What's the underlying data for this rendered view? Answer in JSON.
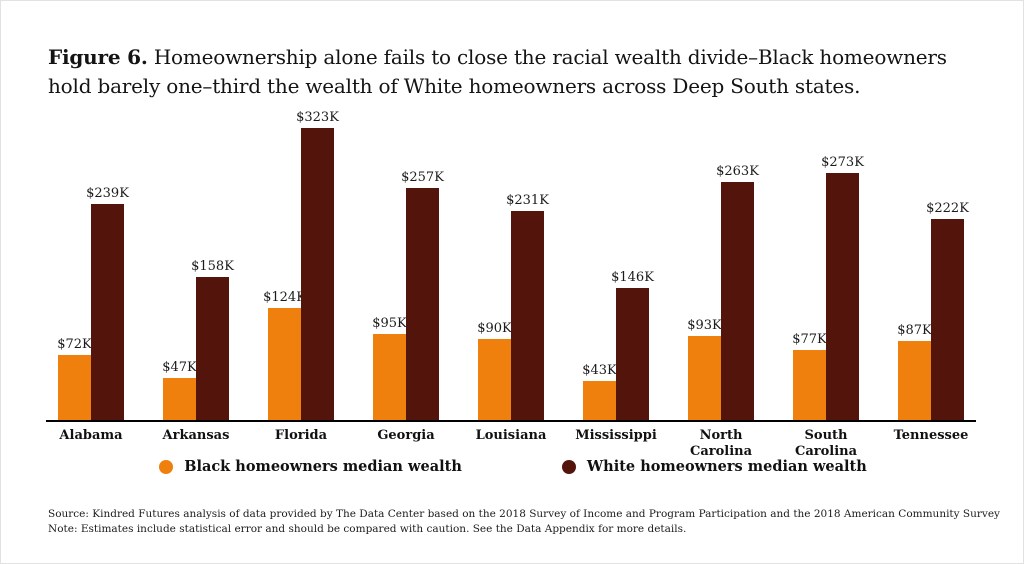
{
  "title": {
    "prefix": "Figure 6.",
    "text": "Homeownership alone fails to close the racial wealth divide–Black homeowners hold barely one–third the wealth of White homeowners across Deep South states."
  },
  "chart_data": {
    "type": "bar",
    "categories": [
      "Alabama",
      "Arkansas",
      "Florida",
      "Georgia",
      "Louisiana",
      "Mississippi",
      "North Carolina",
      "South Carolina",
      "Tennessee"
    ],
    "series": [
      {
        "name": "Black homeowners median wealth",
        "color": "#F0800E",
        "values": [
          72,
          47,
          124,
          95,
          90,
          43,
          93,
          77,
          87
        ],
        "labels": [
          "$72K",
          "$47K",
          "$124K",
          "$95K",
          "$90K",
          "$43K",
          "$93K",
          "$77K",
          "$87K"
        ]
      },
      {
        "name": "White homeowners median wealth",
        "color": "#53140C",
        "values": [
          239,
          158,
          323,
          257,
          231,
          146,
          263,
          273,
          222
        ],
        "labels": [
          "$239K",
          "$158K",
          "$323K",
          "$257K",
          "$231K",
          "$146K",
          "$263K",
          "$273K",
          "$222K"
        ]
      }
    ],
    "xlabel": "",
    "ylabel": "",
    "ylim": [
      0,
      323
    ],
    "unit": "thousand USD",
    "grid": false,
    "legend_position": "bottom",
    "value_label_format": "$NK"
  },
  "legend": {
    "items": [
      {
        "label": "Black homeowners median wealth",
        "color": "#F0800E"
      },
      {
        "label": "White homeowners median wealth",
        "color": "#53140C"
      }
    ]
  },
  "footnotes": {
    "source": "Source: Kindred Futures analysis of data provided by The Data Center based on the 2018 Survey of Income and Program Participation and the 2018 American Community Survey",
    "note": "Note: Estimates include statistical error and should be compared with caution. See the Data Appendix for more details."
  }
}
